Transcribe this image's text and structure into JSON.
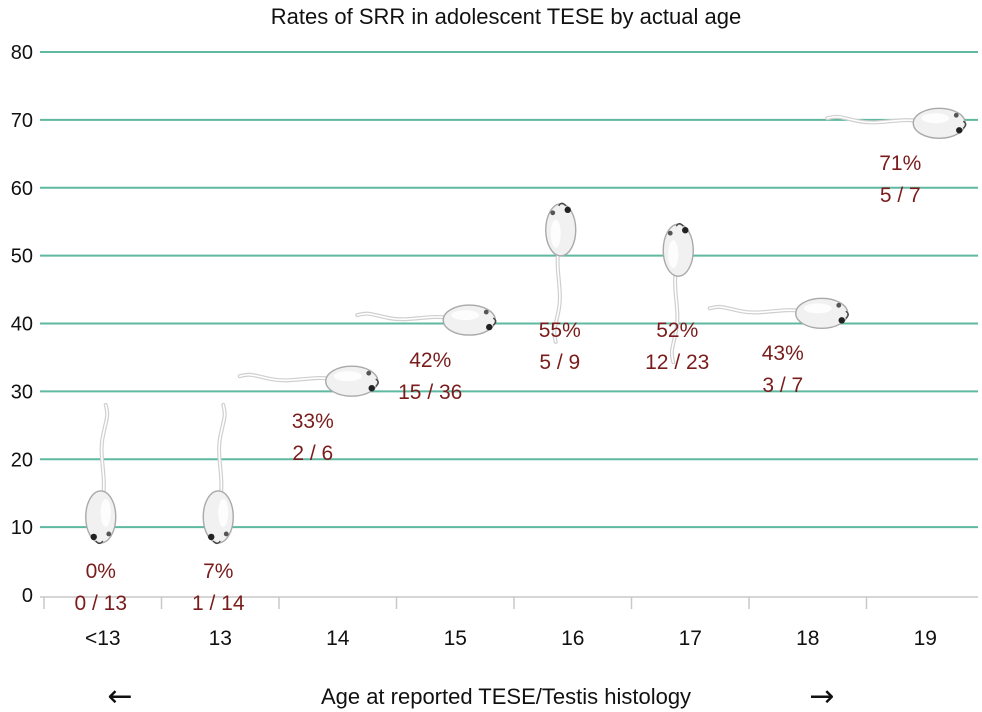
{
  "chart_data": {
    "type": "scatter",
    "title": "Rates of SRR in adolescent TESE by actual age",
    "xlabel": "Age at reported TESE/Testis histology",
    "xlabel_arrow_left": "←",
    "xlabel_arrow_right": "→",
    "ylabel": "",
    "ylim": [
      0,
      80
    ],
    "yticks": [
      "0",
      "10",
      "20",
      "30",
      "40",
      "50",
      "60",
      "70",
      "80"
    ],
    "grid": true,
    "grid_color": "#5fb8a0",
    "label_color": "#7a1c1c",
    "marker": "sperm-icon",
    "categories": [
      "<13",
      "13",
      "14",
      "15",
      "16",
      "17",
      "18",
      "19"
    ],
    "points": [
      {
        "category": "<13",
        "value": 0,
        "percent_label": "0%",
        "count_label": "0 / 13"
      },
      {
        "category": "13",
        "value": 7,
        "percent_label": "7%",
        "count_label": "1 / 14"
      },
      {
        "category": "14",
        "value": 33,
        "percent_label": "33%",
        "count_label": "2 / 6"
      },
      {
        "category": "15",
        "value": 42,
        "percent_label": "42%",
        "count_label": "15 / 36"
      },
      {
        "category": "16",
        "value": 55,
        "percent_label": "55%",
        "count_label": "5 / 9"
      },
      {
        "category": "17",
        "value": 52,
        "percent_label": "52%",
        "count_label": "12 / 23"
      },
      {
        "category": "18",
        "value": 43,
        "percent_label": "43%",
        "count_label": "3 / 7"
      },
      {
        "category": "19",
        "value": 71,
        "percent_label": "71%",
        "count_label": "5 / 7"
      }
    ]
  }
}
